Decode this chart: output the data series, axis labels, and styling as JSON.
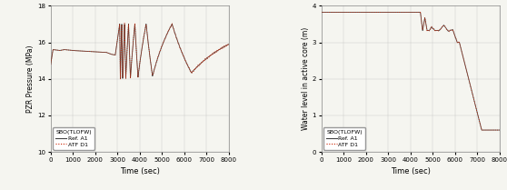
{
  "left": {
    "xlabel": "Time (sec)",
    "ylabel": "PZR Pressure (MPa)",
    "xlim": [
      0,
      8000
    ],
    "ylim": [
      10,
      18
    ],
    "yticks": [
      10,
      12,
      14,
      16,
      18
    ],
    "xticks": [
      0,
      1000,
      2000,
      3000,
      4000,
      5000,
      6000,
      7000,
      8000
    ],
    "legend_title": "SBO(TLOFW)",
    "legend_ref": "Ref. A1",
    "legend_atf": "ATF D1",
    "ref_color": "#444444",
    "atf_color": "#cc2200"
  },
  "right": {
    "xlabel": "Time (sec)",
    "ylabel": "Water level in active core (m)",
    "xlim": [
      0,
      8000
    ],
    "ylim": [
      0,
      4
    ],
    "yticks": [
      0,
      1,
      2,
      3,
      4
    ],
    "xticks": [
      0,
      1000,
      2000,
      3000,
      4000,
      5000,
      6000,
      7000,
      8000
    ],
    "legend_title": "SBO(TLOFW)",
    "legend_ref": "Ref. A1",
    "legend_atf": "ATF D1",
    "ref_color": "#444444",
    "atf_color": "#cc2200"
  }
}
